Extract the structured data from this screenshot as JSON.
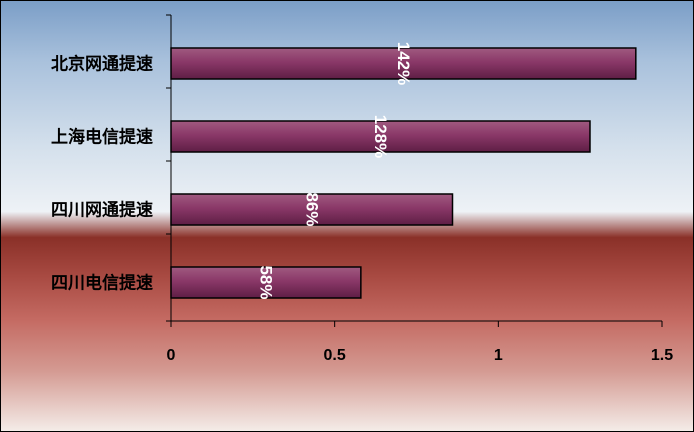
{
  "chart_data": {
    "type": "bar",
    "orientation": "horizontal",
    "categories": [
      "北京网通提速",
      "上海电信提速",
      "四川网通提速",
      "四川电信提速"
    ],
    "values": [
      1.42,
      1.28,
      0.86,
      0.58
    ],
    "data_labels": [
      "142%",
      "128%",
      "86%",
      "58%"
    ],
    "xticks": [
      "0",
      "0.5",
      "1",
      "1.5"
    ],
    "xlim": [
      0,
      1.5
    ],
    "grid": false,
    "legend": "none",
    "colors": {
      "bar_fill_top": "#a05a80",
      "bar_fill_mid": "#8a3868",
      "bar_fill_bottom": "#5e1e45",
      "bar_stroke": "#000000"
    }
  }
}
